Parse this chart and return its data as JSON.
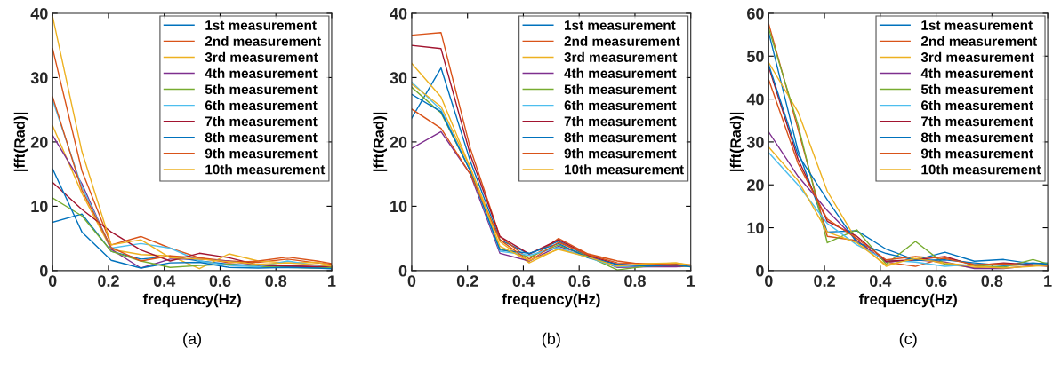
{
  "chart_data": [
    {
      "type": "line",
      "xlabel": "frequency(Hz)",
      "ylabel": "|fft(Rad)|",
      "annotations": [
        "(a)"
      ],
      "legend": "top right",
      "xlim": [
        0,
        1
      ],
      "ylim": [
        0,
        40
      ],
      "xticks": [
        0,
        0.2,
        0.4,
        0.6,
        0.8,
        1
      ],
      "yticks": [
        0,
        10,
        20,
        30,
        40
      ],
      "x": [
        0,
        0.105,
        0.21,
        0.316,
        0.421,
        0.526,
        0.632,
        0.737,
        0.842,
        0.947,
        1
      ],
      "series": [
        {
          "name": "1st measurement",
          "color": "#0072bd",
          "values": [
            7.5,
            8.8,
            3.0,
            1.8,
            2.2,
            1.5,
            1.0,
            0.8,
            0.6,
            0.5,
            0.5
          ]
        },
        {
          "name": "2nd measurement",
          "color": "#d95319",
          "values": [
            34.5,
            15.5,
            4.0,
            5.3,
            3.5,
            2.0,
            1.5,
            1.3,
            1.8,
            1.2,
            1.0
          ]
        },
        {
          "name": "3rd measurement",
          "color": "#edb120",
          "values": [
            22.5,
            12,
            3.3,
            2.5,
            2.3,
            0.3,
            2.6,
            1.5,
            1.2,
            1.3,
            0.8
          ]
        },
        {
          "name": "4th measurement",
          "color": "#7e2f8e",
          "values": [
            21,
            13.5,
            3.3,
            0.4,
            1.8,
            1.8,
            1.5,
            0.8,
            0.8,
            0.6,
            0.6
          ]
        },
        {
          "name": "5th measurement",
          "color": "#77ac30",
          "values": [
            11.3,
            8.5,
            3.0,
            1.5,
            0.5,
            0.8,
            1.0,
            0.6,
            0.5,
            0.4,
            0.5
          ]
        },
        {
          "name": "6th measurement",
          "color": "#4dbeee",
          "values": [
            26.5,
            13,
            3.5,
            4.2,
            3.5,
            1.5,
            0.8,
            0.6,
            1.5,
            0.8,
            0.7
          ]
        },
        {
          "name": "7th measurement",
          "color": "#a2142f",
          "values": [
            13.7,
            9.5,
            6.0,
            3.2,
            1.5,
            2.7,
            2.0,
            0.9,
            0.7,
            0.6,
            0.7
          ]
        },
        {
          "name": "8th measurement",
          "color": "#0072bd",
          "values": [
            15.8,
            6.0,
            1.6,
            0.4,
            1.2,
            1.3,
            0.5,
            0.4,
            0.5,
            0.4,
            0.3
          ]
        },
        {
          "name": "9th measurement",
          "color": "#d95319",
          "values": [
            27,
            12.5,
            3.6,
            1.5,
            2.3,
            2.0,
            1.2,
            1.5,
            2.1,
            1.5,
            1.1
          ]
        },
        {
          "name": "10th measurement",
          "color": "#edb120",
          "values": [
            39.5,
            18.5,
            4.0,
            4.8,
            2.0,
            1.8,
            1.4,
            1.0,
            1.2,
            0.9,
            0.7
          ]
        }
      ]
    },
    {
      "type": "line",
      "xlabel": "frequency(Hz)",
      "ylabel": "|fft(Rad)|",
      "annotations": [
        "(b)"
      ],
      "legend": "top right",
      "xlim": [
        0,
        1
      ],
      "ylim": [
        0,
        40
      ],
      "xticks": [
        0,
        0.2,
        0.4,
        0.6,
        0.8,
        1
      ],
      "yticks": [
        0,
        10,
        20,
        30,
        40
      ],
      "x": [
        0,
        0.105,
        0.21,
        0.316,
        0.421,
        0.526,
        0.632,
        0.737,
        0.842,
        0.947,
        1
      ],
      "series": [
        {
          "name": "1st measurement",
          "color": "#0072bd",
          "values": [
            23.7,
            31.5,
            17,
            4.8,
            2.6,
            4.6,
            2.2,
            0.9,
            0.8,
            0.9,
            0.6
          ]
        },
        {
          "name": "2nd measurement",
          "color": "#d95319",
          "values": [
            36.6,
            37,
            19,
            5.3,
            1.8,
            5.0,
            2.6,
            1.5,
            0.9,
            1.0,
            0.8
          ]
        },
        {
          "name": "3rd measurement",
          "color": "#edb120",
          "values": [
            32.2,
            27,
            16,
            4.5,
            1.2,
            3.4,
            2.2,
            0.6,
            1.0,
            1.2,
            0.9
          ]
        },
        {
          "name": "4th measurement",
          "color": "#7e2f8e",
          "values": [
            19,
            21.6,
            15,
            2.7,
            1.5,
            3.8,
            2.3,
            0.5,
            0.6,
            0.6,
            0.7
          ]
        },
        {
          "name": "5th measurement",
          "color": "#77ac30",
          "values": [
            28.5,
            24.5,
            15.5,
            3.4,
            2.1,
            4.0,
            2.2,
            0.1,
            0.7,
            0.8,
            0.6
          ]
        },
        {
          "name": "6th measurement",
          "color": "#4dbeee",
          "values": [
            29.3,
            25,
            15.5,
            3.0,
            2.4,
            3.6,
            2.0,
            0.6,
            0.8,
            0.8,
            0.7
          ]
        },
        {
          "name": "7th measurement",
          "color": "#a2142f",
          "values": [
            35,
            34.5,
            18,
            5.3,
            2.6,
            4.8,
            2.4,
            1.0,
            0.8,
            0.8,
            0.8
          ]
        },
        {
          "name": "8th measurement",
          "color": "#0072bd",
          "values": [
            27.4,
            24.7,
            15.5,
            3.2,
            2.7,
            4.2,
            2.0,
            1.0,
            0.7,
            0.9,
            0.6
          ]
        },
        {
          "name": "9th measurement",
          "color": "#d95319",
          "values": [
            25.1,
            22.1,
            15,
            4.8,
            1.5,
            4.4,
            2.5,
            1.2,
            1.1,
            0.9,
            0.9
          ]
        },
        {
          "name": "10th measurement",
          "color": "#edb120",
          "values": [
            29,
            25.5,
            16,
            3.8,
            1.6,
            3.3,
            2.1,
            0.7,
            1.1,
            1.2,
            0.8
          ]
        }
      ]
    },
    {
      "type": "line",
      "xlabel": "frequency(Hz)",
      "ylabel": "|fft(Rad)|",
      "annotations": [
        "(c)"
      ],
      "legend": "top right",
      "xlim": [
        0,
        1
      ],
      "ylim": [
        0,
        60
      ],
      "xticks": [
        0,
        0.2,
        0.4,
        0.6,
        0.8,
        1
      ],
      "yticks": [
        0,
        10,
        20,
        30,
        40,
        50,
        60
      ],
      "x": [
        0,
        0.105,
        0.21,
        0.316,
        0.421,
        0.526,
        0.632,
        0.737,
        0.842,
        0.947,
        1
      ],
      "series": [
        {
          "name": "1st measurement",
          "color": "#0072bd",
          "values": [
            55.5,
            28,
            9,
            9.3,
            5,
            2.5,
            4.3,
            2.2,
            2.6,
            1.6,
            1.8
          ]
        },
        {
          "name": "2nd measurement",
          "color": "#d95319",
          "values": [
            57.5,
            33,
            8,
            7,
            2,
            1,
            3,
            1.5,
            1.5,
            1.3,
            1.2
          ]
        },
        {
          "name": "3rd measurement",
          "color": "#edb120",
          "values": [
            48.5,
            37,
            18.5,
            7,
            1.0,
            3.2,
            1.5,
            0.7,
            1.0,
            1.5,
            1.2
          ]
        },
        {
          "name": "4th measurement",
          "color": "#7e2f8e",
          "values": [
            32.3,
            22,
            14,
            7,
            2,
            2.5,
            2,
            0.5,
            0.5,
            1.2,
            1.5
          ]
        },
        {
          "name": "5th measurement",
          "color": "#77ac30",
          "values": [
            56.5,
            34,
            6.5,
            9.5,
            1.5,
            6.8,
            1.5,
            1.2,
            0.8,
            2.6,
            1.6
          ]
        },
        {
          "name": "6th measurement",
          "color": "#4dbeee",
          "values": [
            27.5,
            20,
            11,
            6,
            2.5,
            2,
            1,
            1.5,
            1.2,
            1.5,
            1.0
          ]
        },
        {
          "name": "7th measurement",
          "color": "#a2142f",
          "values": [
            47.5,
            26,
            11.5,
            8,
            2.2,
            2.5,
            3.3,
            1.2,
            1.8,
            1.4,
            1.3
          ]
        },
        {
          "name": "8th measurement",
          "color": "#0072bd",
          "values": [
            48,
            27,
            16.5,
            6.5,
            4,
            2.4,
            2.5,
            1.8,
            1.2,
            1.8,
            1.5
          ]
        },
        {
          "name": "9th measurement",
          "color": "#d95319",
          "values": [
            44.5,
            25,
            12,
            7.5,
            2.5,
            3.3,
            2.8,
            1.4,
            1.6,
            1.2,
            1.0
          ]
        },
        {
          "name": "10th measurement",
          "color": "#edb120",
          "values": [
            28.8,
            21,
            9,
            6.5,
            1.3,
            2.8,
            1.8,
            1.0,
            0.6,
            1.0,
            1.3
          ]
        }
      ]
    }
  ]
}
